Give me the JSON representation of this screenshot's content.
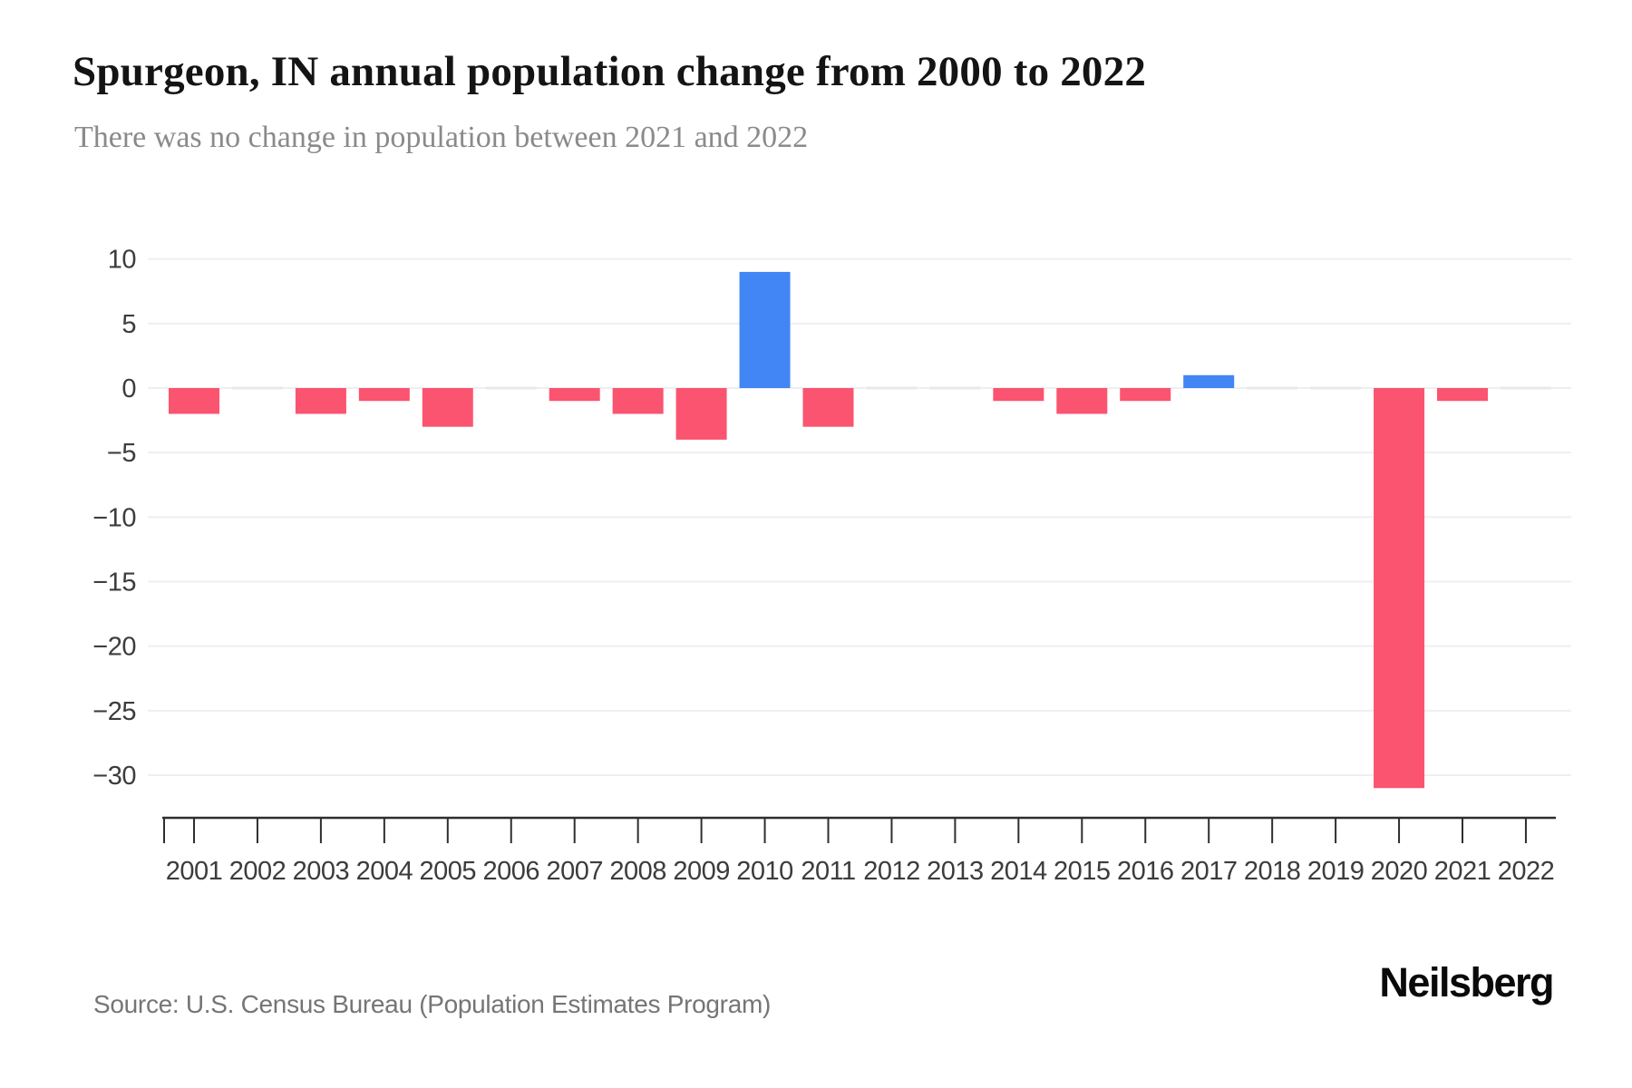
{
  "header": {
    "title": "Spurgeon, IN annual population change from 2000 to 2022",
    "subtitle": "There was no change in population between 2021 and 2022"
  },
  "footer": {
    "source": "Source: U.S. Census Bureau (Population Estimates Program)",
    "brand": "Neilsberg"
  },
  "colors": {
    "positive_bar": "#4285F4",
    "negative_bar": "#FB5470",
    "gridline": "#EFEFEF",
    "zero_marker": "#E9E9E9",
    "axis_line": "#2E2E2E",
    "tick_label": "#3C3C3C",
    "title": "#141414",
    "subtitle": "#8A8A8A",
    "source": "#757575"
  },
  "chart_data": {
    "type": "bar",
    "title": "Spurgeon, IN annual population change from 2000 to 2022",
    "subtitle": "There was no change in population between 2021 and 2022",
    "categories": [
      "2001",
      "2002",
      "2003",
      "2004",
      "2005",
      "2006",
      "2007",
      "2008",
      "2009",
      "2010",
      "2011",
      "2012",
      "2013",
      "2014",
      "2015",
      "2016",
      "2017",
      "2018",
      "2019",
      "2020",
      "2021",
      "2022"
    ],
    "values": [
      -2,
      0,
      -2,
      -1,
      -3,
      0,
      -1,
      -2,
      -4,
      9,
      -3,
      0,
      0,
      -1,
      -2,
      -1,
      1,
      0,
      0,
      -31,
      -1,
      0
    ],
    "xlabel": "",
    "ylabel": "",
    "yticks": [
      10,
      5,
      0,
      -5,
      -10,
      -15,
      -20,
      -25,
      -30
    ],
    "ylim": [
      -33,
      12
    ],
    "grid": true,
    "legend": false,
    "color_rule": "negative values pink, positive values blue, zero values shown as flat light-gray sliver at baseline"
  }
}
